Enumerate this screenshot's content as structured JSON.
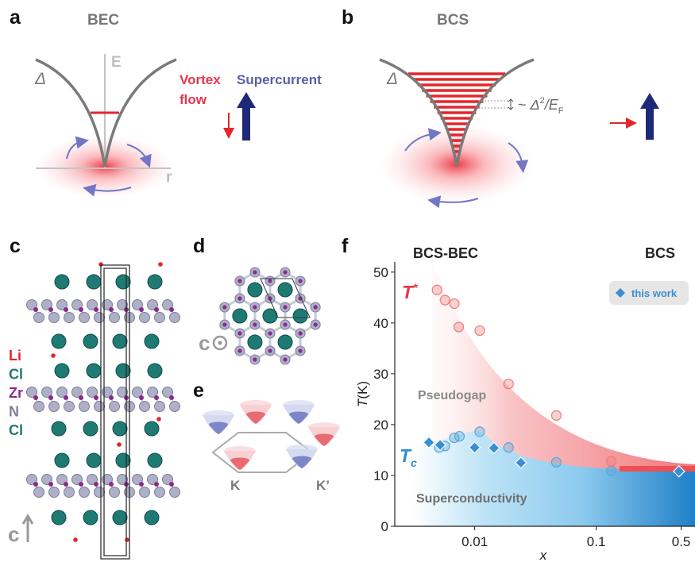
{
  "panels": {
    "a": {
      "label": "a",
      "title": "BEC",
      "gap": "Δ",
      "energy_axis": "E",
      "radius_axis": "r",
      "vortex_flow": [
        "Vortex",
        "flow"
      ],
      "supercurrent": "Supercurrent"
    },
    "b": {
      "label": "b",
      "title": "BCS",
      "gap": "Δ",
      "spacing": {
        "lead": "~ ",
        "symbol": "Δ",
        "sup": "2",
        "mid": "/E",
        "sub": "F"
      }
    },
    "c": {
      "label": "c",
      "axis": "c",
      "elements": [
        {
          "name": "Li",
          "color": "#e3262c"
        },
        {
          "name": "Cl",
          "color": "#1f7a73"
        },
        {
          "name": "Zr",
          "color": "#8a2a8c"
        },
        {
          "name": "N",
          "color": "#7c7f99"
        },
        {
          "name": "Cl",
          "color": "#1f7a73"
        }
      ]
    },
    "d": {
      "label": "d",
      "axis": "c"
    },
    "e": {
      "label": "e",
      "valleys": [
        "K",
        "K’"
      ]
    },
    "f": {
      "label": "f"
    }
  },
  "chart_data": {
    "type": "scatter",
    "xscale": "log",
    "x_label": "x",
    "y_label": {
      "symbol": "T",
      "unit": "(K)"
    },
    "regions": [
      "BCS-BEC",
      "BCS"
    ],
    "annotations": {
      "t_star": {
        "symbol": "T",
        "sup": "*"
      },
      "t_c": {
        "symbol": "T",
        "sub": "c"
      },
      "pseudogap": "Pseudogap",
      "superconductivity": "Superconductivity"
    },
    "xlim": [
      0.0022,
      0.65
    ],
    "xticks": [
      0.01,
      0.1,
      0.5
    ],
    "ylim": [
      0,
      52
    ],
    "yticks": [
      0,
      10,
      20,
      30,
      40,
      50
    ],
    "legend": "upper right",
    "series": [
      {
        "color": "#ef7b7b",
        "marker": "circle",
        "x": [
          0.0049,
          0.0057,
          0.0068,
          0.0074,
          0.011,
          0.019,
          0.047,
          0.133
        ],
        "values": [
          46.5,
          44.5,
          43.8,
          39.2,
          38.5,
          28.0,
          21.8,
          12.8
        ]
      },
      {
        "color": "#5aa7d8",
        "marker": "circle",
        "x": [
          0.0051,
          0.0057,
          0.0068,
          0.0075,
          0.011,
          0.019,
          0.047,
          0.133
        ],
        "values": [
          15.5,
          15.8,
          17.4,
          17.7,
          18.6,
          15.5,
          12.6,
          10.9
        ]
      },
      {
        "name": "this work",
        "color": "#3a8fd0",
        "marker": "diamond",
        "x": [
          0.0042,
          0.0052,
          0.01,
          0.0144,
          0.024,
          0.48
        ],
        "values": [
          16.5,
          16.0,
          15.5,
          15.4,
          12.5,
          10.8
        ]
      }
    ]
  }
}
